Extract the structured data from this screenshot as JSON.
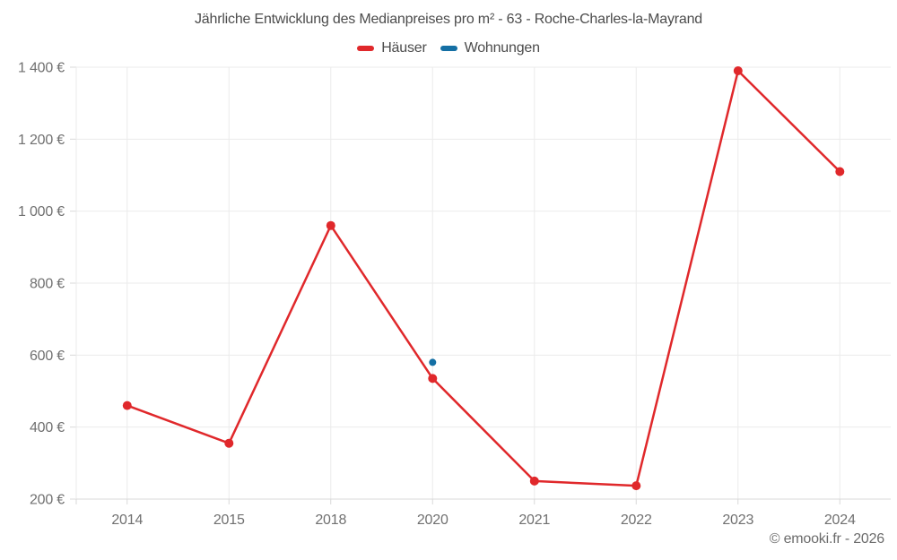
{
  "chart_data": {
    "type": "line",
    "title": "Jährliche Entwicklung des Medianpreises pro m² - 63 - Roche-Charles-la-Mayrand",
    "categories": [
      "2014",
      "2015",
      "2018",
      "2020",
      "2021",
      "2022",
      "2023",
      "2024"
    ],
    "series": [
      {
        "name": "Häuser",
        "color": "#e0282b",
        "values": [
          460,
          355,
          960,
          535,
          250,
          237,
          1390,
          1110
        ]
      },
      {
        "name": "Wohnungen",
        "color": "#146fa4",
        "values": [
          null,
          null,
          null,
          580,
          null,
          null,
          null,
          null
        ]
      }
    ],
    "ylim": [
      200,
      1400
    ],
    "ytick_step": 200,
    "ytick_labels": [
      "200 €",
      "400 €",
      "600 €",
      "800 €",
      "1 000 €",
      "1 200 €",
      "1 400 €"
    ],
    "xlabel": "",
    "ylabel": "",
    "grid": true,
    "legend_position": "top"
  },
  "attribution": "© emooki.fr - 2026",
  "colors": {
    "grid": "#ebebeb",
    "axis": "#d9d9d9",
    "tick": "#d9d9d9",
    "title_text": "#4c4c4c",
    "axis_text": "#707070",
    "attribution_text": "#6b6b6b",
    "background": "#ffffff"
  }
}
